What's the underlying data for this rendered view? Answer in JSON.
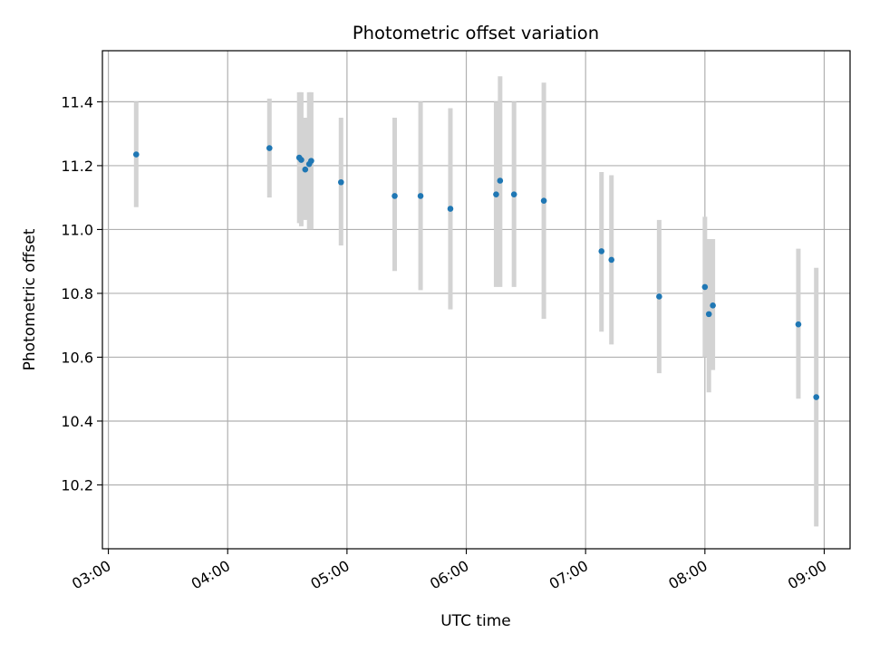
{
  "chart_data": {
    "type": "scatter",
    "title": "Photometric offset variation",
    "xlabel": "UTC time",
    "ylabel": "Photometric offset",
    "x_tick_labels": [
      "03:00",
      "04:00",
      "05:00",
      "06:00",
      "07:00",
      "08:00",
      "09:00"
    ],
    "y_tick_labels": [
      "10.2",
      "10.4",
      "10.6",
      "10.8",
      "11.0",
      "11.2",
      "11.4"
    ],
    "y_ticks": [
      10.2,
      10.4,
      10.6,
      10.8,
      11.0,
      11.2,
      11.4
    ],
    "xlim": [
      "02:57",
      "09:13"
    ],
    "ylim": [
      10.0,
      11.56
    ],
    "grid": true,
    "marker_color": "#1f77b4",
    "errorbar_color": "#d3d3d3",
    "points": [
      {
        "t": "03:14",
        "y": 11.235,
        "lo": 11.07,
        "hi": 11.4
      },
      {
        "t": "04:21",
        "y": 11.255,
        "lo": 11.1,
        "hi": 11.41
      },
      {
        "t": "04:36",
        "y": 11.225,
        "lo": 11.02,
        "hi": 11.43
      },
      {
        "t": "04:37",
        "y": 11.218,
        "lo": 11.01,
        "hi": 11.43
      },
      {
        "t": "04:39",
        "y": 11.188,
        "lo": 11.03,
        "hi": 11.35
      },
      {
        "t": "04:41",
        "y": 11.205,
        "lo": 11.0,
        "hi": 11.43
      },
      {
        "t": "04:42",
        "y": 11.215,
        "lo": 11.0,
        "hi": 11.43
      },
      {
        "t": "04:57",
        "y": 11.148,
        "lo": 10.95,
        "hi": 11.35
      },
      {
        "t": "05:24",
        "y": 11.105,
        "lo": 10.87,
        "hi": 11.35
      },
      {
        "t": "05:37",
        "y": 11.105,
        "lo": 10.81,
        "hi": 11.4
      },
      {
        "t": "05:52",
        "y": 11.065,
        "lo": 10.75,
        "hi": 11.38
      },
      {
        "t": "06:15",
        "y": 11.11,
        "lo": 10.82,
        "hi": 11.4
      },
      {
        "t": "06:17",
        "y": 11.153,
        "lo": 10.82,
        "hi": 11.48
      },
      {
        "t": "06:24",
        "y": 11.11,
        "lo": 10.82,
        "hi": 11.4
      },
      {
        "t": "06:39",
        "y": 11.09,
        "lo": 10.72,
        "hi": 11.46
      },
      {
        "t": "07:08",
        "y": 10.932,
        "lo": 10.68,
        "hi": 11.18
      },
      {
        "t": "07:13",
        "y": 10.905,
        "lo": 10.64,
        "hi": 11.17
      },
      {
        "t": "07:37",
        "y": 10.79,
        "lo": 10.55,
        "hi": 11.03
      },
      {
        "t": "08:00",
        "y": 10.82,
        "lo": 10.6,
        "hi": 11.04
      },
      {
        "t": "08:02",
        "y": 10.735,
        "lo": 10.49,
        "hi": 10.97
      },
      {
        "t": "08:04",
        "y": 10.762,
        "lo": 10.56,
        "hi": 10.97
      },
      {
        "t": "08:47",
        "y": 10.703,
        "lo": 10.47,
        "hi": 10.94
      },
      {
        "t": "08:56",
        "y": 10.475,
        "lo": 10.07,
        "hi": 10.88
      }
    ]
  }
}
